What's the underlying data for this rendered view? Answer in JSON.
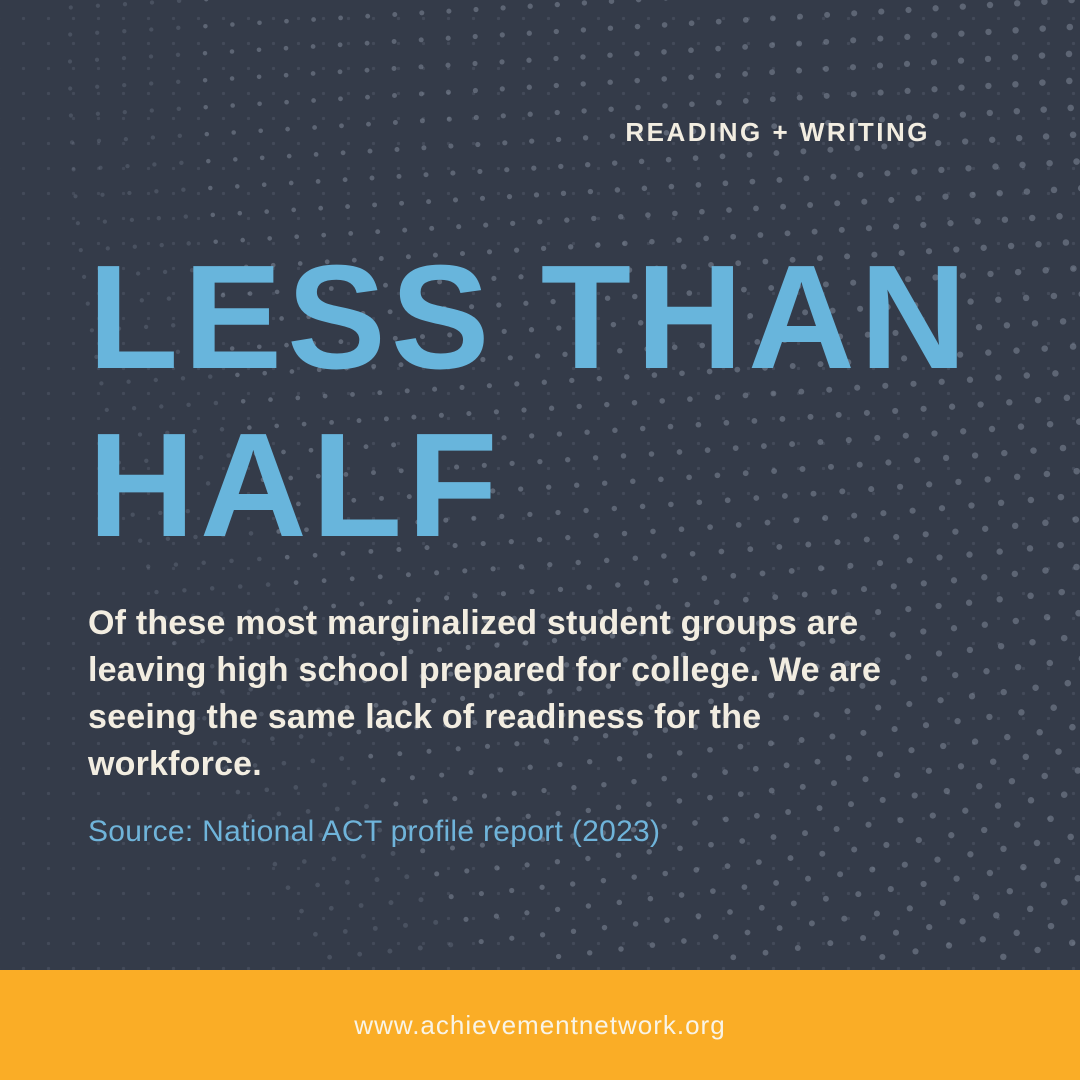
{
  "card": {
    "category_label": "READING + WRITING",
    "headline_lines": [
      "LESS THAN",
      "HALF"
    ],
    "body_lines": [
      "Of these most marginalized student groups are",
      "leaving high school prepared for college. We are",
      "seeing the same lack of readiness for the",
      "workforce."
    ],
    "source_line": "Source: National ACT profile report (2023)",
    "footer": {
      "url": "www.achievementnetwork.org"
    },
    "colors": {
      "background": "#343B49",
      "headline_blue": "#68B5DC",
      "body_cream": "#F2EDE1",
      "source_blue": "#6FB4DA",
      "footer_orange": "#FAAD26",
      "footer_text": "#F9F4E6",
      "dot_gray": "#97A0B0"
    }
  }
}
